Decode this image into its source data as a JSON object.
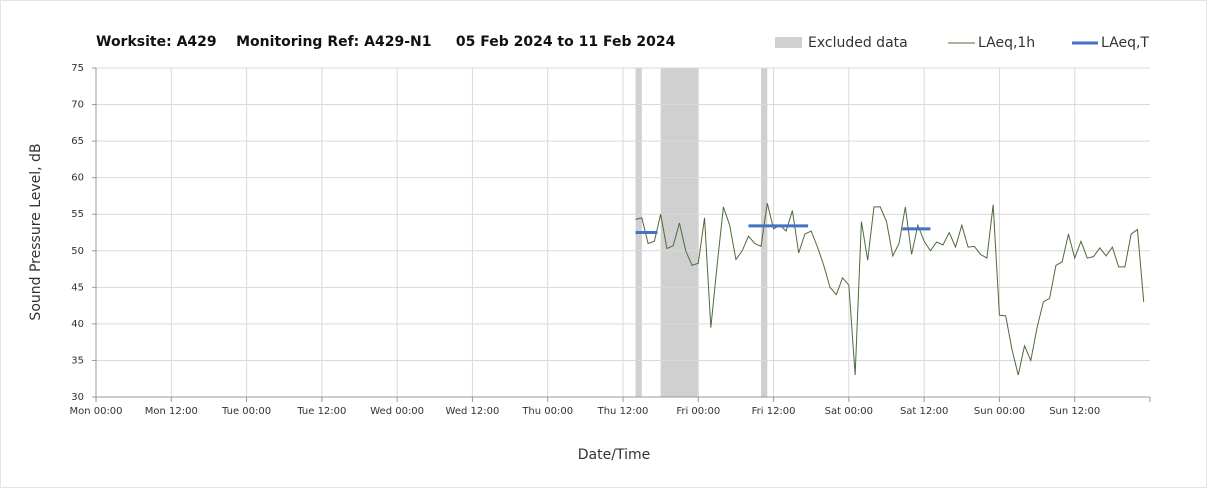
{
  "chart_data": {
    "type": "line",
    "title": "Worksite: A429    Monitoring Ref: A429-N1     05 Feb 2024 to 11 Feb 2024",
    "xlabel": "Date/Time",
    "ylabel": "Sound Pressure Level, dB",
    "xlim": [
      0,
      168
    ],
    "xticks": [
      {
        "value": 0,
        "label": "Mon 00:00"
      },
      {
        "value": 12,
        "label": "Mon 12:00"
      },
      {
        "value": 24,
        "label": "Tue 00:00"
      },
      {
        "value": 36,
        "label": "Tue 12:00"
      },
      {
        "value": 48,
        "label": "Wed 00:00"
      },
      {
        "value": 60,
        "label": "Wed 12:00"
      },
      {
        "value": 72,
        "label": "Thu 00:00"
      },
      {
        "value": 84,
        "label": "Thu 12:00"
      },
      {
        "value": 96,
        "label": "Fri 00:00"
      },
      {
        "value": 108,
        "label": "Fri 12:00"
      },
      {
        "value": 120,
        "label": "Sat 00:00"
      },
      {
        "value": 132,
        "label": "Sat 12:00"
      },
      {
        "value": 144,
        "label": "Sun 00:00"
      },
      {
        "value": 156,
        "label": "Sun 12:00"
      }
    ],
    "ylim": [
      30,
      75
    ],
    "yticks": [
      30,
      35,
      40,
      45,
      50,
      55,
      60,
      65,
      70,
      75
    ],
    "grid": true,
    "excluded": {
      "name": "Excluded data",
      "color": "#d0d0d0",
      "ranges": [
        [
          86,
          87
        ],
        [
          90,
          96
        ],
        [
          106,
          107
        ]
      ]
    },
    "series": [
      {
        "name": "LAeq,1h",
        "color": "#4e6b3a",
        "x": [
          86,
          87,
          88,
          89,
          90,
          91,
          92,
          93,
          94,
          95,
          96,
          97,
          98,
          99,
          100,
          101,
          102,
          103,
          104,
          105,
          106,
          107,
          108,
          109,
          110,
          111,
          112,
          113,
          114,
          115,
          116,
          117,
          118,
          119,
          120,
          121,
          122,
          123,
          124,
          125,
          126,
          127,
          128,
          129,
          130,
          131,
          132,
          133,
          134,
          135,
          136,
          137,
          138,
          139,
          140,
          141,
          142,
          143,
          144,
          145,
          146,
          147,
          148,
          149,
          150,
          151,
          152,
          153,
          154,
          155,
          156,
          157,
          158,
          159,
          160,
          161,
          162,
          163,
          164,
          165,
          166,
          167
        ],
        "values": [
          54.3,
          54.5,
          51,
          51.3,
          55,
          50.3,
          50.7,
          53.8,
          50,
          48,
          48.3,
          54.5,
          39.5,
          48,
          56,
          53.5,
          48.8,
          50,
          52,
          51,
          50.6,
          56.5,
          53,
          53.5,
          52.7,
          55.5,
          49.7,
          52.3,
          52.7,
          50.5,
          48,
          45,
          44,
          46.3,
          45.3,
          33,
          54,
          48.7,
          56,
          56,
          54,
          49.3,
          51,
          56,
          49.5,
          53.5,
          51.3,
          50,
          51.2,
          50.8,
          52.5,
          50.5,
          53.5,
          50.5,
          50.6,
          49.5,
          49,
          56.3,
          41.2,
          41.1,
          36.5,
          33,
          37,
          35,
          39.5,
          43,
          43.5,
          48,
          48.5,
          52.3,
          49,
          51.3,
          49,
          49.2,
          50.4,
          49.3,
          50.5,
          47.8,
          47.8,
          52.3,
          52.9,
          43
        ]
      }
    ],
    "periods": {
      "name": "LAeq,T",
      "color": "#4472c4",
      "segments": [
        {
          "x": [
            86,
            89.5
          ],
          "value": 52.5
        },
        {
          "x": [
            104,
            113.5
          ],
          "value": 53.4
        },
        {
          "x": [
            128.5,
            133
          ],
          "value": 53
        }
      ]
    }
  }
}
